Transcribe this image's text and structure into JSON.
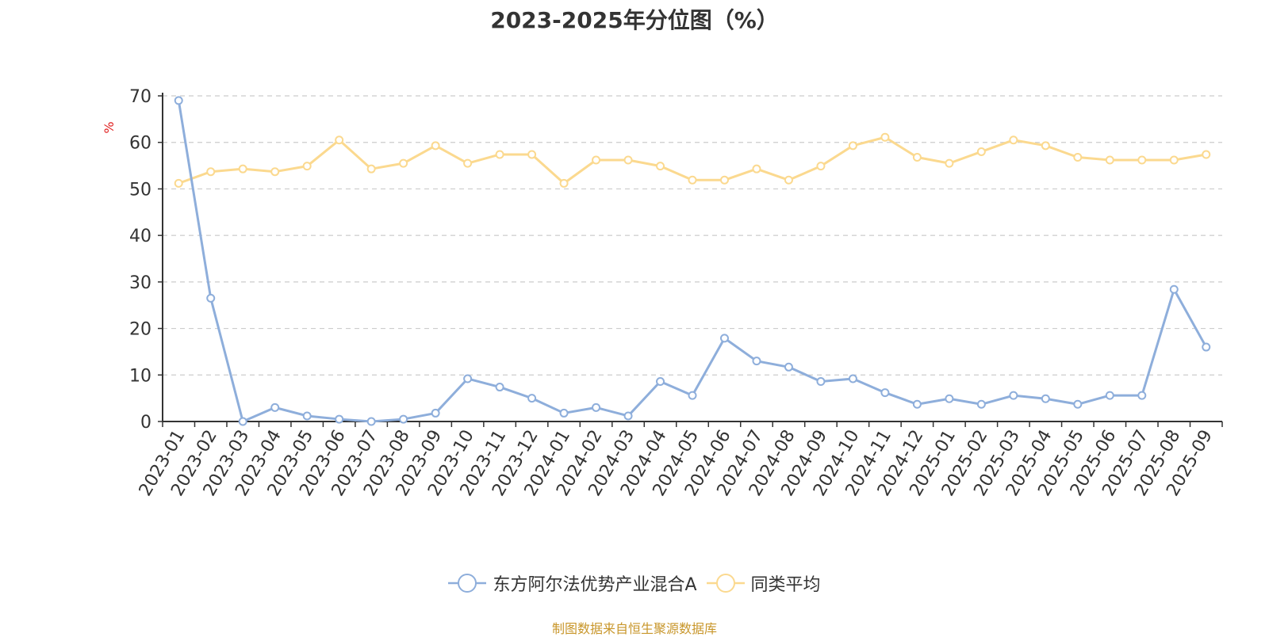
{
  "title": "2023-2025年分位图（%）",
  "source": "制图数据来自恒生聚源数据库",
  "chart_data": {
    "type": "line",
    "title": "2023-2025年分位图（%）",
    "ylabel": "%",
    "xlabel": "",
    "ylim": [
      0,
      70
    ],
    "yticks": [
      0,
      10,
      20,
      30,
      40,
      50,
      60,
      70
    ],
    "grid": true,
    "legend_position": "bottom-center",
    "categories": [
      "2023-01",
      "2023-02",
      "2023-03",
      "2023-04",
      "2023-05",
      "2023-06",
      "2023-07",
      "2023-08",
      "2023-09",
      "2023-10",
      "2023-11",
      "2023-12",
      "2024-01",
      "2024-02",
      "2024-03",
      "2024-04",
      "2024-05",
      "2024-06",
      "2024-07",
      "2024-08",
      "2024-09",
      "2024-10",
      "2024-11",
      "2024-12",
      "2025-01",
      "2025-02",
      "2025-03",
      "2025-04",
      "2025-05",
      "2025-06",
      "2025-07",
      "2025-08",
      "2025-09"
    ],
    "series": [
      {
        "name": "东方阿尔法优势产业混合A",
        "color": "#8eaedb",
        "values": [
          69,
          26.5,
          0,
          3,
          1.2,
          0.5,
          0,
          0.5,
          1.8,
          9.2,
          7.4,
          5,
          1.8,
          3,
          1.2,
          8.6,
          5.6,
          17.9,
          13,
          11.7,
          8.6,
          9.2,
          6.2,
          3.7,
          4.9,
          3.7,
          5.6,
          4.9,
          3.7,
          5.6,
          5.6,
          28.4,
          16
        ]
      },
      {
        "name": "同类平均",
        "color": "#fbd98f",
        "values": [
          51.2,
          53.7,
          54.3,
          53.7,
          54.9,
          60.5,
          54.3,
          55.5,
          59.3,
          55.5,
          57.4,
          57.4,
          51.2,
          56.2,
          56.2,
          54.9,
          51.9,
          51.9,
          54.3,
          51.9,
          54.9,
          59.3,
          61.1,
          56.8,
          55.5,
          58,
          60.5,
          59.3,
          56.8,
          56.2,
          56.2,
          56.2,
          57.4
        ]
      }
    ]
  }
}
